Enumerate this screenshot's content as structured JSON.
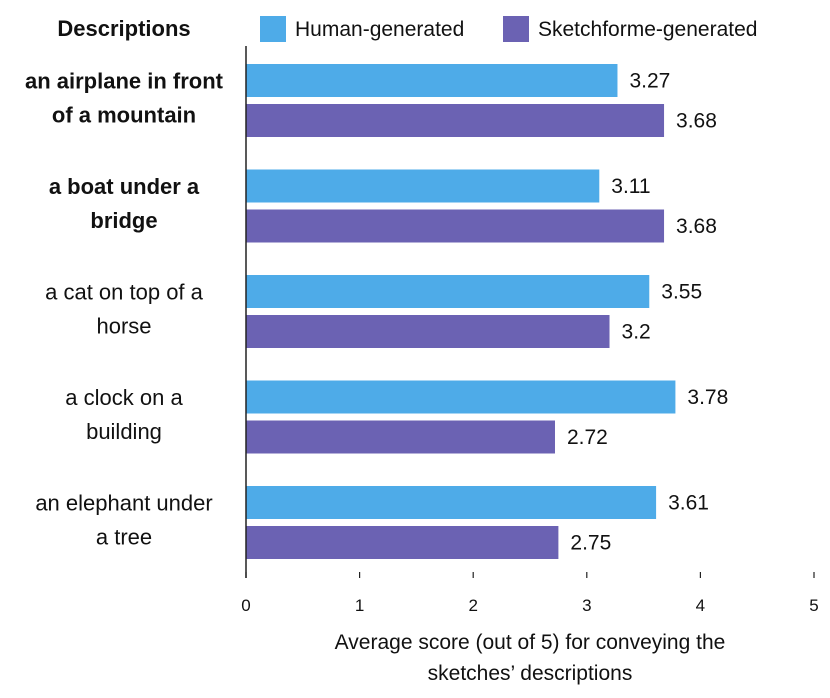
{
  "header": {
    "column_title": "Descriptions"
  },
  "chart_data": {
    "type": "bar",
    "orientation": "horizontal",
    "categories": [
      "an airplane in front of a mountain",
      "a boat under a bridge",
      "a cat on top of a horse",
      "a clock on a building",
      "an elephant under a tree"
    ],
    "category_lines": [
      [
        "an airplane in front",
        "of a mountain"
      ],
      [
        "a boat under a",
        "bridge"
      ],
      [
        "a cat on top of a",
        "horse"
      ],
      [
        "a clock on a",
        "building"
      ],
      [
        "an elephant under",
        "a tree"
      ]
    ],
    "bold_categories": [
      true,
      true,
      false,
      false,
      false
    ],
    "series": [
      {
        "name": "Human-generated",
        "values": [
          3.27,
          3.11,
          3.55,
          3.78,
          3.61
        ],
        "labels": [
          "3.27",
          "3.11",
          "3.55",
          "3.78",
          "3.61"
        ],
        "color": "#4eabe8"
      },
      {
        "name": "Sketchforme-generated",
        "values": [
          3.68,
          3.68,
          3.2,
          2.72,
          2.75
        ],
        "labels": [
          "3.68",
          "3.68",
          "3.2",
          "2.72",
          "2.75"
        ],
        "color": "#6b62b3"
      }
    ],
    "xlim": [
      0,
      5
    ],
    "xticks": [
      "0",
      "1",
      "2",
      "3",
      "4",
      "5"
    ],
    "xlabel_lines": [
      "Average score (out of 5) for conveying the",
      "sketches’ descriptions"
    ],
    "legend_position": "top",
    "grid": false
  }
}
